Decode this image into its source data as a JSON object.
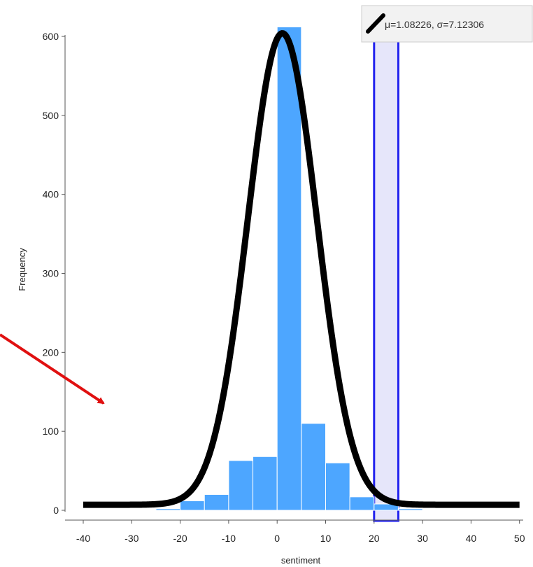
{
  "chart_data": {
    "type": "bar",
    "xlabel": "sentiment",
    "ylabel": "Frequency",
    "xlim": [
      -40,
      50
    ],
    "ylim": [
      0,
      600
    ],
    "x_ticks": [
      -40,
      -30,
      -20,
      -10,
      0,
      10,
      20,
      30,
      40,
      50
    ],
    "y_ticks": [
      0,
      100,
      200,
      300,
      400,
      500,
      600
    ],
    "bin_width": 5,
    "bins": [
      {
        "start": -25,
        "value": 2
      },
      {
        "start": -20,
        "value": 12
      },
      {
        "start": -15,
        "value": 20
      },
      {
        "start": -10,
        "value": 63
      },
      {
        "start": -5,
        "value": 68
      },
      {
        "start": 0,
        "value": 612
      },
      {
        "start": 5,
        "value": 110
      },
      {
        "start": 10,
        "value": 60
      },
      {
        "start": 15,
        "value": 17
      },
      {
        "start": 20,
        "value": 8
      },
      {
        "start": 25,
        "value": 2
      }
    ],
    "fit_curve": {
      "type": "normal",
      "mu": 1.08226,
      "sigma": 7.12306,
      "peak": 604,
      "baseline": 7,
      "legend_label": "μ=1.08226, σ=7.12306"
    },
    "highlight_range": [
      20,
      25
    ],
    "colors": {
      "bar": "#4da6ff",
      "curve": "#000000",
      "highlight_stroke": "#2222ee",
      "highlight_fill": "#e6e6fa",
      "arrow": "#e01010",
      "axis": "#555555"
    },
    "grid": false,
    "legend_position": "top-right"
  }
}
